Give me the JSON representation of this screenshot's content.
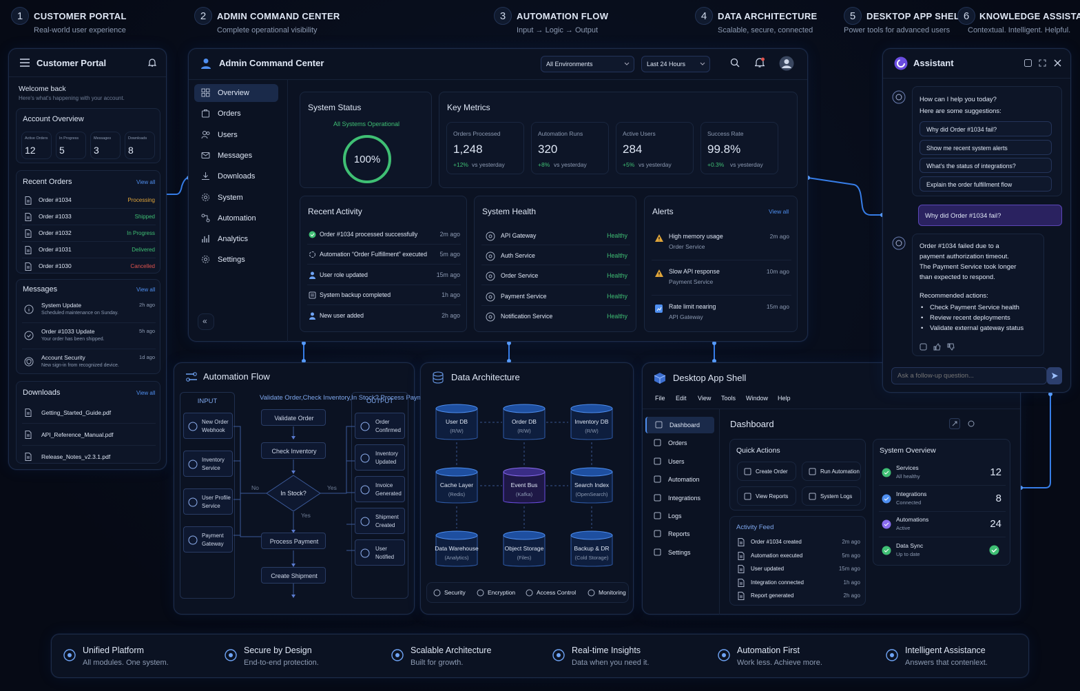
{
  "steps": [
    {
      "num": "1",
      "title": "CUSTOMER PORTAL",
      "sub": "Real-world user experience"
    },
    {
      "num": "2",
      "title": "ADMIN COMMAND CENTER",
      "sub": "Complete operational visibility"
    },
    {
      "num": "3",
      "title": "AUTOMATION FLOW",
      "sub": "Input → Logic → Output"
    },
    {
      "num": "4",
      "title": "DATA ARCHITECTURE",
      "sub": "Scalable, secure, connected"
    },
    {
      "num": "5",
      "title": "DESKTOP APP SHELL",
      "sub": "Power tools for advanced users"
    },
    {
      "num": "6",
      "title": "KNOWLEDGE ASSISTANT",
      "sub": "Contextual. Intelligent. Helpful."
    }
  ],
  "portal": {
    "title": "Customer Portal",
    "welcome": "Welcome back",
    "welcome_sub": "Here's what's happening with your account.",
    "overview_title": "Account Overview",
    "stats": [
      {
        "label": "Active Orders",
        "value": "12"
      },
      {
        "label": "In Progress",
        "value": "5"
      },
      {
        "label": "Messages",
        "value": "3"
      },
      {
        "label": "Downloads",
        "value": "8"
      }
    ],
    "orders_title": "Recent Orders",
    "view_all": "View all",
    "orders": [
      {
        "name": "Order #1034",
        "status": "Processing"
      },
      {
        "name": "Order #1033",
        "status": "Shipped"
      },
      {
        "name": "Order #1032",
        "status": "In Progress"
      },
      {
        "name": "Order #1031",
        "status": "Delivered"
      },
      {
        "name": "Order #1030",
        "status": "Cancelled"
      }
    ],
    "messages_title": "Messages",
    "messages": [
      {
        "title": "System Update",
        "sub": "Scheduled maintenance on Sunday.",
        "time": "2h ago"
      },
      {
        "title": "Order #1033 Update",
        "sub": "Your order has been shipped.",
        "time": "5h ago"
      },
      {
        "title": "Account Security",
        "sub": "New sign-in from recognized device.",
        "time": "1d ago"
      }
    ],
    "downloads_title": "Downloads",
    "downloads": [
      "Getting_Started_Guide.pdf",
      "API_Reference_Manual.pdf",
      "Release_Notes_v2.3.1.pdf"
    ]
  },
  "admin": {
    "title": "Admin Command Center",
    "env": "All Environments",
    "range": "Last 24 Hours",
    "nav": [
      "Overview",
      "Orders",
      "Users",
      "Messages",
      "Downloads",
      "System",
      "Automation",
      "Analytics",
      "Settings"
    ],
    "status_title": "System Status",
    "status_sub": "All Systems Operational",
    "status_pct": "100%",
    "metrics_title": "Key Metrics",
    "metrics": [
      {
        "label": "Orders Processed",
        "value": "1,248",
        "delta": "+12%",
        "suffix": "vs yesterday"
      },
      {
        "label": "Automation Runs",
        "value": "320",
        "delta": "+8%",
        "suffix": "vs yesterday"
      },
      {
        "label": "Active Users",
        "value": "284",
        "delta": "+5%",
        "suffix": "vs yesterday"
      },
      {
        "label": "Success Rate",
        "value": "99.8%",
        "delta": "+0.3%",
        "suffix": "vs yesterday"
      }
    ],
    "activity_title": "Recent Activity",
    "activity": [
      {
        "text": "Order #1034 processed successfully",
        "time": "2m ago"
      },
      {
        "text": "Automation “Order Fulfillment” executed",
        "time": "5m ago"
      },
      {
        "text": "User role updated",
        "time": "15m ago"
      },
      {
        "text": "System backup completed",
        "time": "1h ago"
      },
      {
        "text": "New user added",
        "time": "2h ago"
      }
    ],
    "health_title": "System Health",
    "health": [
      {
        "name": "API Gateway",
        "status": "Healthy"
      },
      {
        "name": "Auth Service",
        "status": "Healthy"
      },
      {
        "name": "Order Service",
        "status": "Healthy"
      },
      {
        "name": "Payment Service",
        "status": "Healthy"
      },
      {
        "name": "Notification Service",
        "status": "Healthy"
      }
    ],
    "alerts_title": "Alerts",
    "view_all": "View all",
    "alerts": [
      {
        "title": "High memory usage",
        "sub": "Order Service",
        "time": "2m ago"
      },
      {
        "title": "Slow API response",
        "sub": "Payment Service",
        "time": "10m ago"
      },
      {
        "title": "Rate limit nearing",
        "sub": "API Gateway",
        "time": "15m ago"
      }
    ]
  },
  "flow": {
    "title": "Automation Flow",
    "input": "INPUT",
    "logic": [
      "Validate Order",
      "Check Inventory",
      "In Stock?",
      "Process Payment",
      "Create Shipment"
    ],
    "output": "OUTPUT",
    "inputs": [
      [
        "New Order",
        "Webhook"
      ],
      [
        "Inventory",
        "Service"
      ],
      [
        "User Profile",
        "Service"
      ],
      [
        "Payment",
        "Gateway"
      ]
    ],
    "yes": "Yes",
    "no": "No",
    "outputs": [
      [
        "Order",
        "Confirmed"
      ],
      [
        "Inventory",
        "Updated"
      ],
      [
        "Invoice",
        "Generated"
      ],
      [
        "Shipment",
        "Created"
      ],
      [
        "User",
        "Notified"
      ]
    ]
  },
  "data": {
    "title": "Data Architecture",
    "nodes": [
      [
        "User DB",
        "(R/W)"
      ],
      [
        "Order DB",
        "(R/W)"
      ],
      [
        "Inventory DB",
        "(R/W)"
      ],
      [
        "Cache Layer",
        "(Redis)"
      ],
      [
        "Event Bus",
        "(Kafka)"
      ],
      [
        "Search Index",
        "(OpenSearch)"
      ],
      [
        "Data Warehouse",
        "(Analytics)"
      ],
      [
        "Object Storage",
        "(Files)"
      ],
      [
        "Backup & DR",
        "(Cold Storage)"
      ]
    ],
    "footer": [
      "Security",
      "Encryption",
      "Access Control",
      "Monitoring"
    ]
  },
  "desktop": {
    "title": "Desktop App Shell",
    "menu": [
      "File",
      "Edit",
      "View",
      "Tools",
      "Window",
      "Help"
    ],
    "nav": [
      "Dashboard",
      "Orders",
      "Users",
      "Automation",
      "Integrations",
      "Logs",
      "Reports",
      "Settings"
    ],
    "heading": "Dashboard",
    "qa_title": "Quick Actions",
    "qa": [
      "Create Order",
      "Run Automation",
      "View Reports",
      "System Logs"
    ],
    "feed_title": "Activity Feed",
    "feed": [
      {
        "text": "Order #1034 created",
        "time": "2m ago"
      },
      {
        "text": "Automation executed",
        "time": "5m ago"
      },
      {
        "text": "User updated",
        "time": "15m ago"
      },
      {
        "text": "Integration connected",
        "time": "1h ago"
      },
      {
        "text": "Report generated",
        "time": "2h ago"
      }
    ],
    "ov_title": "System Overview",
    "ov": [
      {
        "title": "Services",
        "sub": "All healthy",
        "value": "12"
      },
      {
        "title": "Integrations",
        "sub": "Connected",
        "value": "8"
      },
      {
        "title": "Automations",
        "sub": "Active",
        "value": "24"
      },
      {
        "title": "Data Sync",
        "sub": "Up to date",
        "value": ""
      }
    ]
  },
  "assistant": {
    "title": "Assistant",
    "greet1": "How can I help you today?",
    "greet2": "Here are some suggestions:",
    "suggestions": [
      "Why did Order #1034 fail?",
      "Show me recent system alerts",
      "What's the status of integrations?",
      "Explain the order fulfillment flow"
    ],
    "user_msg": "Why did Order #1034 fail?",
    "answer": [
      "Order #1034 failed due to a",
      "payment authorization timeout.",
      "The Payment Service took longer",
      "than expected to respond."
    ],
    "rec_title": "Recommended actions:",
    "rec": [
      "Check Payment Service health",
      "Review recent deployments",
      "Validate external gateway status"
    ],
    "placeholder": "Ask a follow-up question..."
  },
  "features": [
    {
      "title": "Unified Platform",
      "sub": "All modules. One system."
    },
    {
      "title": "Secure by Design",
      "sub": "End-to-end protection."
    },
    {
      "title": "Scalable Architecture",
      "sub": "Built for growth."
    },
    {
      "title": "Real-time Insights",
      "sub": "Data when you need it."
    },
    {
      "title": "Automation First",
      "sub": "Work less. Achieve more."
    },
    {
      "title": "Intelligent Assistance",
      "sub": "Answers that contenlext."
    }
  ],
  "colors": {
    "accent": "#3d8bff",
    "green": "#3fbf74",
    "amber": "#e0a53a",
    "red": "#e0544f",
    "purple": "#3a2a6e"
  }
}
